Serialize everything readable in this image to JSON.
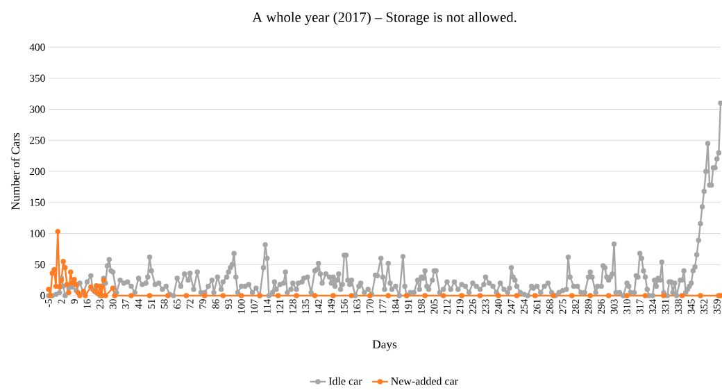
{
  "chart_data": {
    "type": "line",
    "title": "A whole year (2017) – Storage is not allowed.",
    "xlabel": "Days",
    "ylabel": "Number of Cars",
    "xlim": [
      -5,
      361
    ],
    "xticks": [
      -5,
      2,
      9,
      16,
      23,
      30,
      37,
      44,
      51,
      58,
      65,
      72,
      79,
      86,
      93,
      100,
      107,
      114,
      121,
      128,
      135,
      142,
      149,
      156,
      163,
      170,
      177,
      184,
      191,
      198,
      205,
      212,
      219,
      226,
      233,
      240,
      247,
      254,
      261,
      268,
      275,
      282,
      289,
      296,
      303,
      310,
      317,
      324,
      331,
      338,
      345,
      352,
      359
    ],
    "ylim": [
      0,
      400
    ],
    "yticks": [
      0,
      50,
      100,
      150,
      200,
      250,
      300,
      350,
      400
    ],
    "grid": "y",
    "legend": "bottom",
    "marker": "circle",
    "line_style": "solid",
    "series": [
      {
        "name": "Idle car",
        "color": "#a5a5a5",
        "x": [
          -5,
          -3,
          -1,
          1,
          2,
          3,
          4,
          6,
          8,
          10,
          12,
          14,
          16,
          18,
          19,
          21,
          23,
          25,
          26,
          27,
          28,
          29,
          30,
          32,
          34,
          36,
          38,
          40,
          42,
          44,
          46,
          48,
          49,
          50,
          51,
          53,
          55,
          57,
          59,
          61,
          63,
          65,
          67,
          69,
          71,
          72,
          74,
          76,
          78,
          80,
          82,
          84,
          85,
          87,
          89,
          90,
          92,
          93,
          94,
          95,
          96,
          97,
          98,
          100,
          102,
          104,
          106,
          108,
          110,
          112,
          113,
          114,
          115,
          117,
          118,
          119,
          121,
          123,
          124,
          125,
          127,
          128,
          130,
          131,
          133,
          134,
          136,
          138,
          140,
          141,
          142,
          143,
          144,
          146,
          148,
          149,
          150,
          151,
          152,
          153,
          154,
          155,
          156,
          157,
          158,
          159,
          160,
          162,
          164,
          165,
          167,
          169,
          171,
          173,
          174,
          176,
          177,
          178,
          180,
          181,
          182,
          184,
          186,
          188,
          189,
          190,
          192,
          194,
          196,
          197,
          198,
          199,
          200,
          201,
          202,
          204,
          205,
          206,
          208,
          210,
          212,
          214,
          216,
          218,
          220,
          222,
          224,
          226,
          228,
          230,
          232,
          233,
          235,
          237,
          239,
          241,
          243,
          245,
          246,
          247,
          248,
          249,
          250,
          252,
          254,
          256,
          258,
          259,
          261,
          263,
          265,
          267,
          269,
          271,
          273,
          275,
          277,
          278,
          279,
          281,
          283,
          285,
          287,
          289,
          290,
          291,
          293,
          294,
          296,
          297,
          298,
          299,
          300,
          301,
          302,
          303,
          304,
          306,
          308,
          310,
          311,
          312,
          314,
          315,
          316,
          317,
          318,
          319,
          320,
          321,
          322,
          324,
          325,
          326,
          327,
          328,
          329,
          330,
          332,
          333,
          334,
          335,
          336,
          337,
          339,
          340,
          341,
          342,
          343,
          344,
          345,
          346,
          347,
          348,
          349,
          350,
          351,
          352,
          353,
          354,
          355,
          356,
          357,
          358,
          359,
          360,
          361
        ],
        "values": [
          0,
          0,
          2,
          5,
          28,
          15,
          0,
          12,
          14,
          8,
          20,
          5,
          22,
          32,
          10,
          5,
          0,
          28,
          20,
          48,
          58,
          40,
          38,
          5,
          25,
          20,
          22,
          15,
          5,
          28,
          18,
          20,
          30,
          62,
          40,
          18,
          20,
          10,
          15,
          2,
          0,
          28,
          15,
          35,
          25,
          36,
          10,
          38,
          5,
          5,
          15,
          25,
          5,
          30,
          10,
          22,
          30,
          38,
          45,
          50,
          68,
          30,
          5,
          15,
          15,
          18,
          5,
          12,
          0,
          45,
          82,
          60,
          0,
          5,
          22,
          10,
          18,
          20,
          38,
          5,
          10,
          20,
          10,
          20,
          22,
          28,
          30,
          5,
          40,
          42,
          52,
          35,
          20,
          35,
          30,
          20,
          30,
          15,
          25,
          35,
          10,
          18,
          65,
          65,
          25,
          18,
          25,
          0,
          15,
          20,
          5,
          10,
          2,
          33,
          32,
          60,
          30,
          10,
          52,
          20,
          10,
          15,
          0,
          63,
          15,
          0,
          5,
          5,
          25,
          10,
          30,
          28,
          40,
          15,
          10,
          25,
          40,
          40,
          5,
          10,
          22,
          10,
          22,
          10,
          18,
          15,
          5,
          20,
          15,
          10,
          18,
          30,
          20,
          15,
          5,
          20,
          10,
          5,
          12,
          45,
          30,
          25,
          15,
          5,
          2,
          0,
          15,
          12,
          15,
          5,
          15,
          20,
          5,
          0,
          5,
          8,
          10,
          62,
          30,
          15,
          15,
          5,
          5,
          30,
          38,
          30,
          5,
          15,
          15,
          48,
          45,
          30,
          25,
          30,
          35,
          83,
          5,
          5,
          0,
          20,
          15,
          5,
          5,
          32,
          30,
          68,
          60,
          40,
          30,
          10,
          0,
          0,
          25,
          15,
          28,
          25,
          54,
          5,
          0,
          22,
          22,
          5,
          20,
          0,
          25,
          25,
          40,
          5,
          10,
          15,
          20,
          40,
          46,
          66,
          89,
          116,
          143,
          168,
          200,
          245,
          178,
          178,
          206,
          206,
          220,
          230,
          310
        ]
      },
      {
        "name": "New-added car",
        "color": "#ff7c22",
        "x": [
          -5,
          -4,
          -3,
          -2,
          -1,
          0,
          1,
          2,
          3,
          4,
          5,
          6,
          7,
          8,
          9,
          10,
          11,
          12,
          14,
          15,
          18,
          20,
          21,
          22,
          23,
          24,
          25,
          26,
          30,
          31,
          40,
          50,
          60,
          70,
          80,
          90,
          100,
          110,
          120,
          130,
          140,
          150,
          160,
          170,
          180,
          190,
          200,
          210,
          220,
          230,
          240,
          250,
          260,
          270,
          280,
          290,
          300,
          310,
          320,
          330,
          340,
          350,
          360,
          361
        ],
        "values": [
          10,
          0,
          36,
          42,
          15,
          103,
          14,
          25,
          55,
          45,
          18,
          5,
          38,
          20,
          26,
          18,
          5,
          0,
          7,
          0,
          14,
          7,
          16,
          3,
          15,
          0,
          25,
          0,
          12,
          0,
          0,
          0,
          0,
          0,
          0,
          0,
          0,
          0,
          0,
          0,
          0,
          0,
          0,
          0,
          0,
          0,
          0,
          0,
          0,
          0,
          0,
          0,
          0,
          0,
          0,
          0,
          0,
          0,
          0,
          0,
          0,
          0,
          0,
          0
        ]
      }
    ]
  }
}
